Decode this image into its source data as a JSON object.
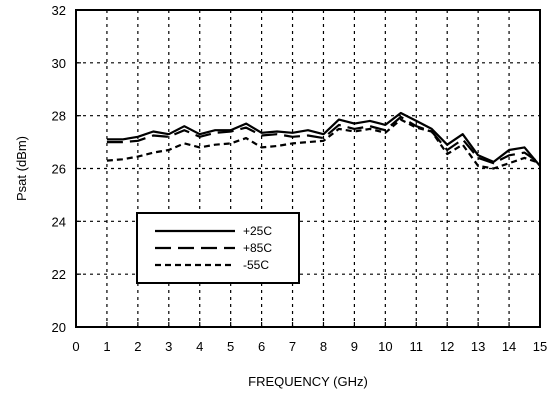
{
  "chart_data": {
    "type": "line",
    "title": "",
    "xlabel": "FREQUENCY (GHz)",
    "ylabel": "Psat (dBm)",
    "xlim": [
      0,
      15
    ],
    "ylim": [
      20,
      32
    ],
    "xticks": [
      "0",
      "1",
      "2",
      "3",
      "4",
      "5",
      "6",
      "7",
      "8",
      "9",
      "10",
      "11",
      "12",
      "13",
      "14",
      "15"
    ],
    "yticks": [
      "20",
      "22",
      "24",
      "26",
      "28",
      "30",
      "32"
    ],
    "grid": true,
    "legend_position": "lower-left",
    "series": [
      {
        "name": "+25C",
        "style": "solid",
        "x": [
          1,
          1.5,
          2,
          2.5,
          3,
          3.5,
          4,
          4.5,
          5,
          5.5,
          6,
          6.5,
          7,
          7.5,
          8,
          8.5,
          9,
          9.5,
          10,
          10.5,
          11,
          11.5,
          12,
          12.5,
          13,
          13.5,
          14,
          14.5,
          15
        ],
        "y": [
          27.1,
          27.1,
          27.2,
          27.4,
          27.3,
          27.6,
          27.3,
          27.45,
          27.45,
          27.7,
          27.35,
          27.4,
          27.35,
          27.45,
          27.3,
          27.85,
          27.7,
          27.8,
          27.65,
          28.1,
          27.8,
          27.5,
          26.9,
          27.3,
          26.5,
          26.25,
          26.7,
          26.8,
          26.1
        ]
      },
      {
        "name": "+85C",
        "style": "long-dash",
        "x": [
          1,
          1.5,
          2,
          2.5,
          3,
          3.5,
          4,
          4.5,
          5,
          5.5,
          6,
          6.5,
          7,
          7.5,
          8,
          8.5,
          9,
          9.5,
          10,
          10.5,
          11,
          11.5,
          12,
          12.5,
          13,
          13.5,
          14,
          14.5,
          15
        ],
        "y": [
          27.0,
          27.0,
          27.05,
          27.25,
          27.2,
          27.45,
          27.2,
          27.35,
          27.4,
          27.55,
          27.25,
          27.3,
          27.2,
          27.25,
          27.15,
          27.65,
          27.5,
          27.6,
          27.45,
          27.95,
          27.6,
          27.4,
          26.7,
          27.1,
          26.4,
          26.2,
          26.5,
          26.6,
          26.2
        ]
      },
      {
        "name": "-55C",
        "style": "short-dash",
        "x": [
          1,
          1.5,
          2,
          2.5,
          3,
          3.5,
          4,
          4.5,
          5,
          5.5,
          6,
          6.5,
          7,
          7.5,
          8,
          8.5,
          9,
          9.5,
          10,
          10.5,
          11,
          11.5,
          12,
          12.5,
          13,
          13.5,
          14,
          14.5,
          15
        ],
        "y": [
          26.3,
          26.35,
          26.45,
          26.6,
          26.7,
          26.95,
          26.8,
          26.9,
          26.95,
          27.15,
          26.8,
          26.85,
          26.95,
          27.0,
          27.05,
          27.5,
          27.4,
          27.5,
          27.35,
          27.85,
          27.55,
          27.4,
          26.55,
          26.9,
          26.1,
          26.0,
          26.2,
          26.4,
          26.2
        ]
      }
    ]
  }
}
